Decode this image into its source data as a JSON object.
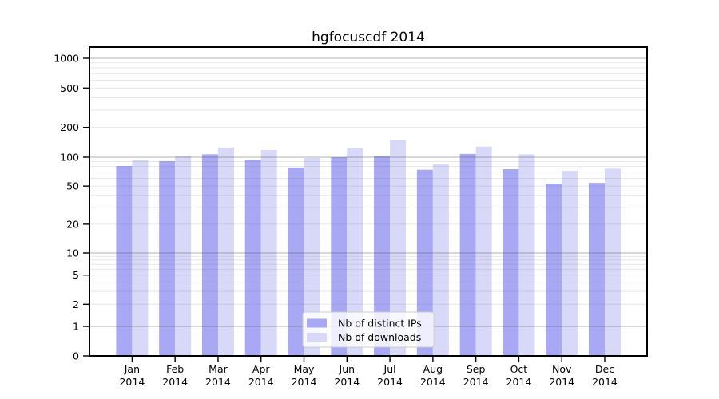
{
  "chart_data": {
    "type": "bar",
    "title": "hgfocuscdf 2014",
    "categories": [
      "Jan",
      "Feb",
      "Mar",
      "Apr",
      "May",
      "Jun",
      "Jul",
      "Aug",
      "Sep",
      "Oct",
      "Nov",
      "Dec"
    ],
    "category_sublabel": "2014",
    "series": [
      {
        "name": "Nb of distinct IPs",
        "color": "#a8a8f4",
        "values": [
          81,
          91,
          107,
          94,
          78,
          100,
          102,
          74,
          108,
          75,
          53,
          54
        ]
      },
      {
        "name": "Nb of downloads",
        "color": "#d8d8f8",
        "values": [
          93,
          103,
          125,
          118,
          98,
          124,
          148,
          84,
          128,
          107,
          72,
          76
        ]
      }
    ],
    "xlabel": "",
    "ylabel": "",
    "y_ticks": [
      0,
      1,
      2,
      5,
      10,
      20,
      50,
      100,
      200,
      500,
      1000
    ],
    "y_scale": "log",
    "ylim": [
      0,
      1000
    ],
    "grid": true,
    "legend_position": "bottom-center",
    "colors": {
      "axis": "#000000",
      "background": "#ffffff",
      "major_grid": "#b0b0b0",
      "minor_grid": "#e6e6e6",
      "legend_border": "#cccccc"
    }
  }
}
